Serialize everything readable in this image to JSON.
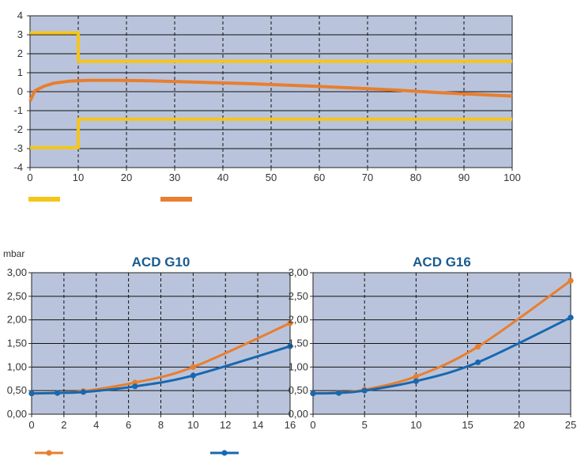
{
  "colors": {
    "plot_bg": "#b9c4dc",
    "yellow": "#f6c518",
    "orange": "#e97e2e",
    "blue": "#1768b0",
    "title": "#1a5b8f"
  },
  "chart_data": [
    {
      "type": "line",
      "title": "",
      "xlabel": "",
      "ylabel": "",
      "xlim": [
        0,
        100
      ],
      "ylim": [
        -4,
        4
      ],
      "x_ticks": [
        "0",
        "10",
        "20",
        "30",
        "40",
        "50",
        "60",
        "70",
        "80",
        "90",
        "100"
      ],
      "y_ticks": [
        "4",
        "3",
        "2",
        "1",
        "0",
        "-1",
        "-2",
        "-3",
        "-4"
      ],
      "grid": true,
      "legend": "bottom-left",
      "series": [
        {
          "color": "yellow",
          "points": [
            [
              0,
              3.1
            ],
            [
              10,
              3.1
            ],
            [
              10,
              1.6
            ],
            [
              100,
              1.6
            ]
          ]
        },
        {
          "color": "yellow",
          "points": [
            [
              0,
              -2.95
            ],
            [
              10,
              -2.95
            ],
            [
              10,
              -1.45
            ],
            [
              100,
              -1.45
            ]
          ]
        },
        {
          "color": "orange",
          "points": [
            [
              0,
              -0.5
            ],
            [
              1,
              0.05
            ],
            [
              3,
              0.3
            ],
            [
              5,
              0.45
            ],
            [
              8,
              0.55
            ],
            [
              12,
              0.6
            ],
            [
              18,
              0.6
            ],
            [
              25,
              0.57
            ],
            [
              35,
              0.5
            ],
            [
              45,
              0.43
            ],
            [
              55,
              0.33
            ],
            [
              65,
              0.22
            ],
            [
              75,
              0.1
            ],
            [
              85,
              -0.05
            ],
            [
              95,
              -0.17
            ],
            [
              100,
              -0.23
            ]
          ]
        }
      ]
    },
    {
      "type": "line",
      "title": "ACD G10",
      "ylabel": "mbar",
      "xlabel": "",
      "xlim": [
        0,
        16
      ],
      "ylim": [
        0,
        3
      ],
      "x_ticks": [
        "0",
        "2",
        "4",
        "6",
        "8",
        "10",
        "12",
        "14",
        "16"
      ],
      "y_ticks": [
        "3,00",
        "2,50",
        "2,00",
        "1,50",
        "1,00",
        "0,50",
        "0,00"
      ],
      "grid": true,
      "legend": "bottom",
      "series": [
        {
          "color": "orange",
          "x": [
            0,
            1.6,
            3.2,
            6.4,
            10,
            16
          ],
          "y": [
            0.44,
            0.45,
            0.49,
            0.67,
            1.0,
            1.93
          ]
        },
        {
          "color": "blue",
          "x": [
            0,
            1.6,
            3.2,
            6.4,
            10,
            16
          ],
          "y": [
            0.44,
            0.45,
            0.47,
            0.59,
            0.82,
            1.44
          ]
        }
      ]
    },
    {
      "type": "line",
      "title": "ACD G16",
      "xlabel": "",
      "ylabel": "",
      "xlim": [
        0,
        25
      ],
      "ylim": [
        0,
        3
      ],
      "x_ticks": [
        "0",
        "5",
        "10",
        "15",
        "20",
        "25"
      ],
      "y_ticks": [
        "3,00",
        "2,50",
        "2,00",
        "1,50",
        "1,00",
        "0,50",
        "0,00"
      ],
      "grid": true,
      "legend": "bottom",
      "series": [
        {
          "color": "orange",
          "x": [
            0,
            2.5,
            5,
            10,
            16,
            25
          ],
          "y": [
            0.44,
            0.46,
            0.52,
            0.8,
            1.43,
            2.83
          ]
        },
        {
          "color": "blue",
          "x": [
            0,
            2.5,
            5,
            10,
            16,
            25
          ],
          "y": [
            0.44,
            0.45,
            0.5,
            0.7,
            1.1,
            2.05
          ]
        }
      ]
    }
  ]
}
